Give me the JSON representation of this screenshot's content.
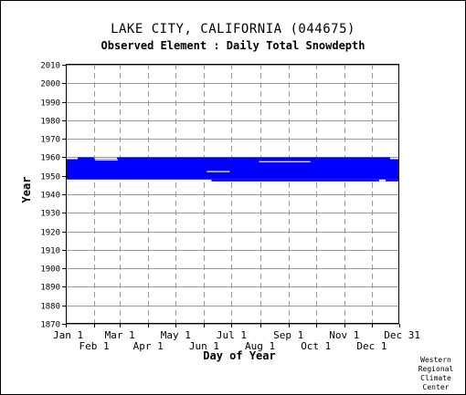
{
  "chart_data": {
    "type": "heatmap",
    "title": "LAKE CITY, CALIFORNIA   (044675)",
    "subtitle": "Observed Element : Daily Total Snowdepth",
    "xlabel": "Day of Year",
    "ylabel": "Year",
    "x_ticks_upper": [
      "Jan 1",
      "Mar 1",
      "May 1",
      "Jul 1",
      "Sep 1",
      "Nov 1",
      "Dec 31"
    ],
    "x_ticks_lower": [
      "Feb 1",
      "Apr 1",
      "Jun 1",
      "Aug 1",
      "Oct 1",
      "Dec 1"
    ],
    "x_tick_days": [
      1,
      32,
      60,
      91,
      121,
      152,
      182,
      213,
      244,
      274,
      305,
      335,
      365
    ],
    "y_ticks": [
      1870,
      1880,
      1890,
      1900,
      1910,
      1920,
      1930,
      1940,
      1950,
      1960,
      1970,
      1980,
      1990,
      2000,
      2010
    ],
    "ylim": [
      1870,
      2010.5
    ],
    "xlim": [
      1,
      365
    ],
    "grid": true,
    "data_color": "#0000ff",
    "data_blocks": [
      {
        "day_start": 1,
        "day_end": 365,
        "year_start": 1948,
        "year_end": 1958
      },
      {
        "day_start": 1,
        "day_end": 14,
        "year_start": 1958,
        "year_end": 1959
      },
      {
        "day_start": 14,
        "day_end": 32,
        "year_start": 1958,
        "year_end": 1960
      },
      {
        "day_start": 32,
        "day_end": 57,
        "year_start": 1958,
        "year_end": 1959
      },
      {
        "day_start": 57,
        "day_end": 355,
        "year_start": 1958,
        "year_end": 1960
      },
      {
        "day_start": 355,
        "day_end": 365,
        "year_start": 1958,
        "year_end": 1959
      },
      {
        "day_start": 160,
        "day_end": 365,
        "year_start": 1947,
        "year_end": 1948
      }
    ],
    "gaps": [
      {
        "day_start": 155,
        "day_end": 180,
        "year_start": 1952,
        "year_end": 1952.6
      },
      {
        "day_start": 212,
        "day_end": 268,
        "year_start": 1957.3,
        "year_end": 1957.9
      },
      {
        "day_start": 33,
        "day_end": 58,
        "year_start": 1958.3,
        "year_end": 1958.8
      },
      {
        "day_start": 343,
        "day_end": 350,
        "year_start": 1947,
        "year_end": 1948
      }
    ]
  },
  "credit": [
    "Western",
    "Regional",
    "Climate",
    "Center"
  ]
}
